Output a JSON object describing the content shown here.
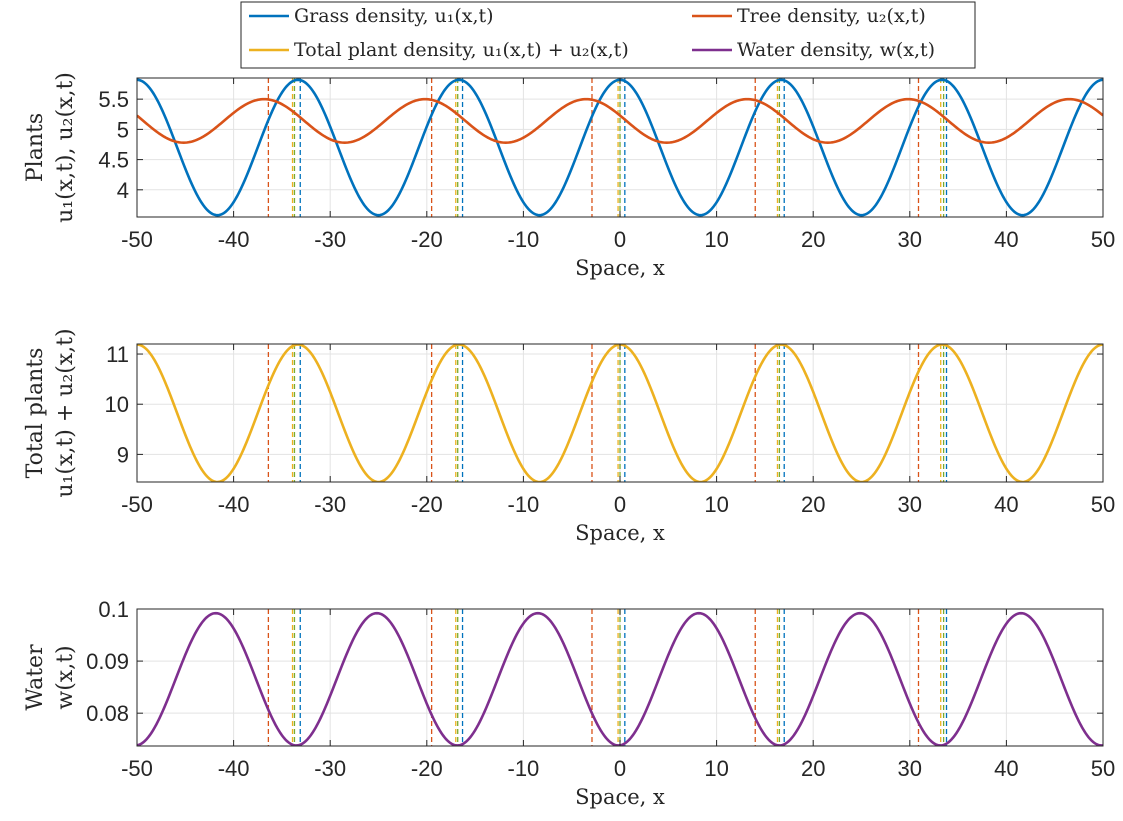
{
  "chart_data": {
    "type": "line",
    "legend": {
      "placement": "top",
      "columns": 2,
      "entries": [
        {
          "label": "Grass density, u₁(x,t)",
          "color": "#0072BD"
        },
        {
          "label": "Tree density, u₂(x,t)",
          "color": "#D95319"
        },
        {
          "label": "Total plant density, u₁(x,t) + u₂(x,t)",
          "color": "#EDB120"
        },
        {
          "label": "Water density, w(x,t)",
          "color": "#7E2F8E"
        }
      ]
    },
    "vlines": [
      {
        "color": "#D95319",
        "x": [
          -36.4,
          -19.5,
          -2.9,
          14.0,
          30.9
        ]
      },
      {
        "color": "#EDB120",
        "x": [
          -33.9,
          -17.0,
          -0.2,
          16.3,
          33.2
        ]
      },
      {
        "color": "#77AC30",
        "x": [
          -33.7,
          -16.8,
          0.0,
          16.5,
          33.5
        ]
      },
      {
        "color": "#0072BD",
        "x": [
          -33.1,
          -16.3,
          0.5,
          17.0,
          33.8
        ]
      }
    ],
    "panels": [
      {
        "xlabel": "Space, x",
        "ylabel_lines": [
          "Plants",
          "u₁(x,t), u₂(x,t)"
        ],
        "xlim": [
          -50,
          50
        ],
        "ylim": [
          3.55,
          5.85
        ],
        "xticks": [
          -50,
          -40,
          -30,
          -20,
          -10,
          0,
          10,
          20,
          30,
          40,
          50
        ],
        "xtick_labels": [
          "-50",
          "-40",
          "-30",
          "-20",
          "-10",
          "0",
          "10",
          "20",
          "30",
          "40",
          "50"
        ],
        "yticks": [
          4,
          4.5,
          5,
          5.5
        ],
        "ytick_labels": [
          "4",
          "4.5",
          "5",
          "5.5"
        ],
        "grid": true,
        "series": [
          {
            "legend_index": 0,
            "color": "#0072BD",
            "mean": 4.7,
            "amplitude": 1.12,
            "peak": 0.0,
            "period": 16.67
          },
          {
            "legend_index": 1,
            "color": "#D95319",
            "mean": 5.14,
            "amplitude": 0.36,
            "peak": -3.5,
            "period": 16.67
          }
        ]
      },
      {
        "xlabel": "Space, x",
        "ylabel_lines": [
          "Total plants",
          "u₁(x,t) + u₂(x,t)"
        ],
        "xlim": [
          -50,
          50
        ],
        "ylim": [
          8.45,
          11.2
        ],
        "xticks": [
          -50,
          -40,
          -30,
          -20,
          -10,
          0,
          10,
          20,
          30,
          40,
          50
        ],
        "xtick_labels": [
          "-50",
          "-40",
          "-30",
          "-20",
          "-10",
          "0",
          "10",
          "20",
          "30",
          "40",
          "50"
        ],
        "yticks": [
          9,
          10,
          11
        ],
        "ytick_labels": [
          "9",
          "10",
          "11"
        ],
        "grid": true,
        "series": [
          {
            "legend_index": 2,
            "color": "#EDB120",
            "mean": 9.82,
            "amplitude": 1.37,
            "peak": 0.0,
            "period": 16.67
          }
        ]
      },
      {
        "xlabel": "Space, x",
        "ylabel_lines": [
          "Water",
          "w(x,t)"
        ],
        "xlim": [
          -50,
          50
        ],
        "ylim": [
          0.0737,
          0.1
        ],
        "xticks": [
          -50,
          -40,
          -30,
          -20,
          -10,
          0,
          10,
          20,
          30,
          40,
          50
        ],
        "xtick_labels": [
          "-50",
          "-40",
          "-30",
          "-20",
          "-10",
          "0",
          "10",
          "20",
          "30",
          "40",
          "50"
        ],
        "yticks": [
          0.08,
          0.09,
          0.1
        ],
        "ytick_labels": [
          "0.08",
          "0.09",
          "0.1"
        ],
        "grid": true,
        "series": [
          {
            "legend_index": 3,
            "color": "#7E2F8E",
            "mean": 0.0865,
            "amplitude": 0.0127,
            "peak": -8.5,
            "period": 16.67
          }
        ]
      }
    ]
  }
}
